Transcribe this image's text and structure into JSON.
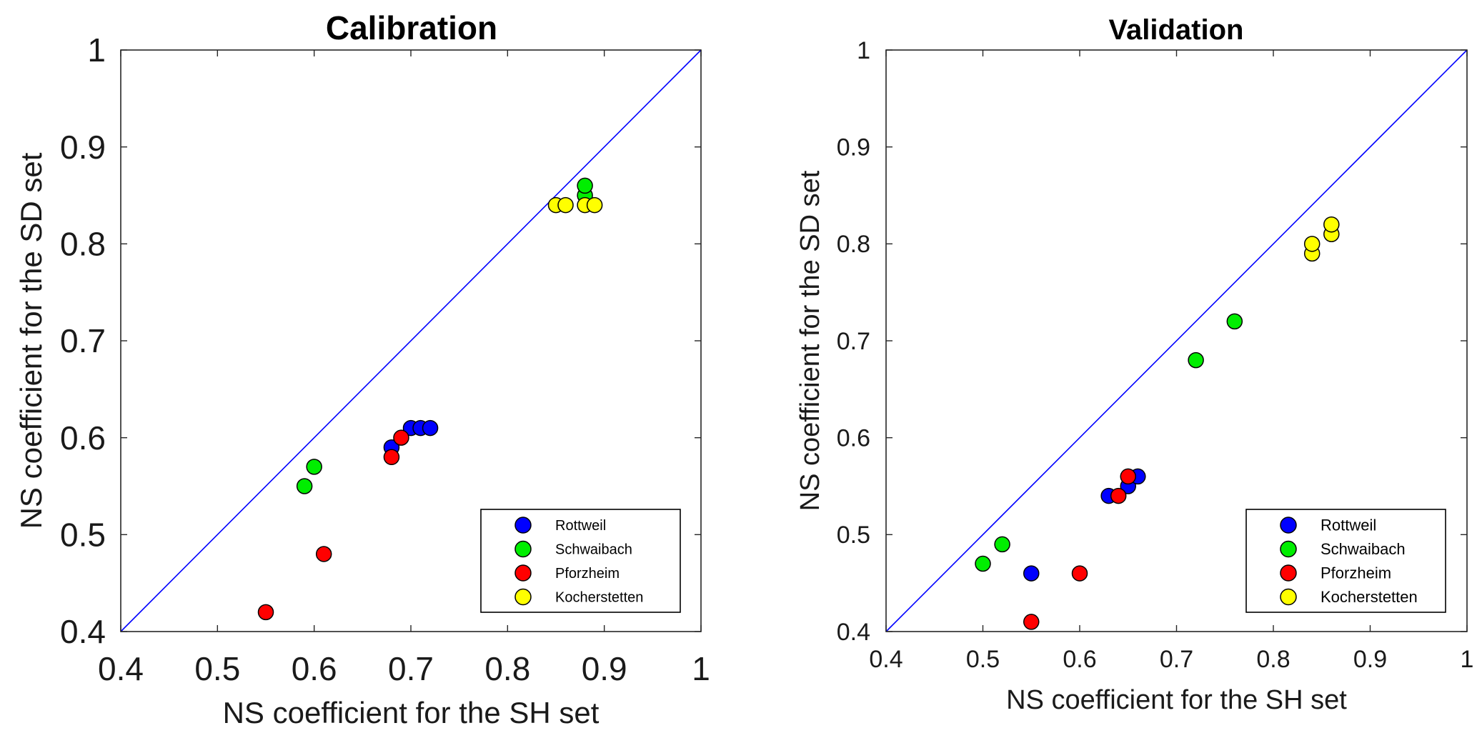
{
  "chart_data": [
    {
      "type": "scatter",
      "title": "Calibration",
      "xlabel": "NS coefficient for the SH set",
      "ylabel": "NS coefficient for the SD set",
      "xlim": [
        0.4,
        1
      ],
      "ylim": [
        0.4,
        1
      ],
      "xticks": [
        "0.4",
        "0.5",
        "0.6",
        "0.7",
        "0.8",
        "0.9",
        "1"
      ],
      "yticks": [
        "0.4",
        "0.5",
        "0.6",
        "0.7",
        "0.8",
        "0.9",
        "1"
      ],
      "reference_line": "1:1",
      "legend_position": "bottom-right",
      "series": [
        {
          "name": "Rottweil",
          "color": "#0000ff",
          "points": [
            [
              0.68,
              0.59
            ],
            [
              0.7,
              0.61
            ],
            [
              0.71,
              0.61
            ],
            [
              0.72,
              0.61
            ]
          ]
        },
        {
          "name": "Schwaibach",
          "color": "#00ee00",
          "points": [
            [
              0.59,
              0.55
            ],
            [
              0.6,
              0.57
            ],
            [
              0.88,
              0.85
            ],
            [
              0.88,
              0.86
            ]
          ]
        },
        {
          "name": "Pforzheim",
          "color": "#ff0000",
          "points": [
            [
              0.55,
              0.42
            ],
            [
              0.61,
              0.48
            ],
            [
              0.68,
              0.58
            ],
            [
              0.69,
              0.6
            ]
          ]
        },
        {
          "name": "Kocherstetten",
          "color": "#ffff00",
          "points": [
            [
              0.85,
              0.84
            ],
            [
              0.86,
              0.84
            ],
            [
              0.88,
              0.84
            ],
            [
              0.89,
              0.84
            ]
          ]
        }
      ]
    },
    {
      "type": "scatter",
      "title": "Validation",
      "xlabel": "NS coefficient for the SH set",
      "ylabel": "NS coefficient for the SD set",
      "xlim": [
        0.4,
        1
      ],
      "ylim": [
        0.4,
        1
      ],
      "xticks": [
        "0.4",
        "0.5",
        "0.6",
        "0.7",
        "0.8",
        "0.9",
        "1"
      ],
      "yticks": [
        "0.4",
        "0.5",
        "0.6",
        "0.7",
        "0.8",
        "0.9",
        "1"
      ],
      "reference_line": "1:1",
      "legend_position": "bottom-right",
      "series": [
        {
          "name": "Rottweil",
          "color": "#0000ff",
          "points": [
            [
              0.55,
              0.46
            ],
            [
              0.63,
              0.54
            ],
            [
              0.65,
              0.55
            ],
            [
              0.66,
              0.56
            ]
          ]
        },
        {
          "name": "Schwaibach",
          "color": "#00ee00",
          "points": [
            [
              0.5,
              0.47
            ],
            [
              0.52,
              0.49
            ],
            [
              0.72,
              0.68
            ],
            [
              0.76,
              0.72
            ]
          ]
        },
        {
          "name": "Pforzheim",
          "color": "#ff0000",
          "points": [
            [
              0.55,
              0.41
            ],
            [
              0.6,
              0.46
            ],
            [
              0.64,
              0.54
            ],
            [
              0.65,
              0.56
            ]
          ]
        },
        {
          "name": "Kocherstetten",
          "color": "#ffff00",
          "points": [
            [
              0.84,
              0.79
            ],
            [
              0.84,
              0.8
            ],
            [
              0.86,
              0.81
            ],
            [
              0.86,
              0.82
            ]
          ]
        }
      ]
    }
  ]
}
